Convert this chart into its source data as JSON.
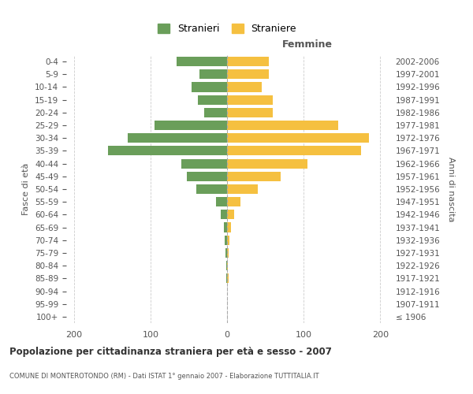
{
  "age_groups": [
    "100+",
    "95-99",
    "90-94",
    "85-89",
    "80-84",
    "75-79",
    "70-74",
    "65-69",
    "60-64",
    "55-59",
    "50-54",
    "45-49",
    "40-44",
    "35-39",
    "30-34",
    "25-29",
    "20-24",
    "15-19",
    "10-14",
    "5-9",
    "0-4"
  ],
  "birth_years": [
    "≤ 1906",
    "1907-1911",
    "1912-1916",
    "1917-1921",
    "1922-1926",
    "1927-1931",
    "1932-1936",
    "1937-1941",
    "1942-1946",
    "1947-1951",
    "1952-1956",
    "1957-1961",
    "1962-1966",
    "1967-1971",
    "1972-1976",
    "1977-1981",
    "1982-1986",
    "1987-1991",
    "1992-1996",
    "1997-2001",
    "2002-2006"
  ],
  "males": [
    0,
    0,
    0,
    1,
    1,
    2,
    3,
    4,
    8,
    14,
    40,
    53,
    60,
    155,
    130,
    95,
    30,
    38,
    46,
    36,
    66
  ],
  "females": [
    0,
    0,
    0,
    2,
    1,
    2,
    3,
    5,
    9,
    18,
    40,
    70,
    105,
    175,
    185,
    145,
    60,
    60,
    45,
    55,
    55
  ],
  "male_color": "#6a9e5a",
  "female_color": "#f5c040",
  "background_color": "#ffffff",
  "grid_color": "#cccccc",
  "text_color": "#555555",
  "xlim": 210,
  "title": "Popolazione per cittadinanza straniera per età e sesso - 2007",
  "subtitle": "COMUNE DI MONTEROTONDO (RM) - Dati ISTAT 1° gennaio 2007 - Elaborazione TUTTITALIA.IT",
  "xlabel_right": "Femmine",
  "ylabel_left": "Fasce di età",
  "ylabel_right": "Anni di nascita",
  "legend_male": "Stranieri",
  "legend_female": "Straniere"
}
